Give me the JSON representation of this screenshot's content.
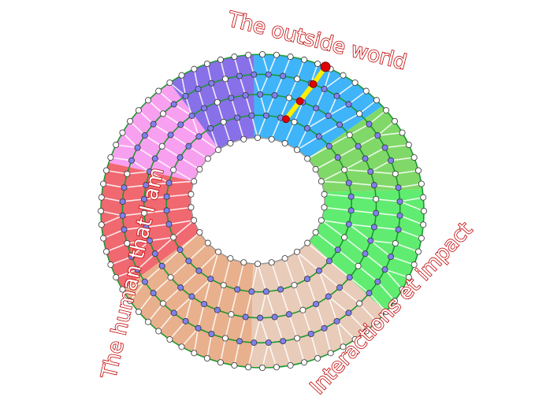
{
  "labels": {
    "top": "The outside world",
    "left": "The human that I am",
    "right": "Interactions et impact"
  },
  "sectors": [
    {
      "color": "#40b4f8"
    },
    {
      "color": "#80d868"
    },
    {
      "color": "#60ec70"
    },
    {
      "color": "#e8cbb8"
    },
    {
      "color": "#e8b08c"
    },
    {
      "color": "#f06870"
    },
    {
      "color": "#f8a0f0"
    },
    {
      "color": "#8870e8"
    }
  ],
  "colors": {
    "ring": "#1a9a30",
    "node": "#8080f0",
    "highlight_path": "#ffee00",
    "highlight_node": "#e00000"
  }
}
